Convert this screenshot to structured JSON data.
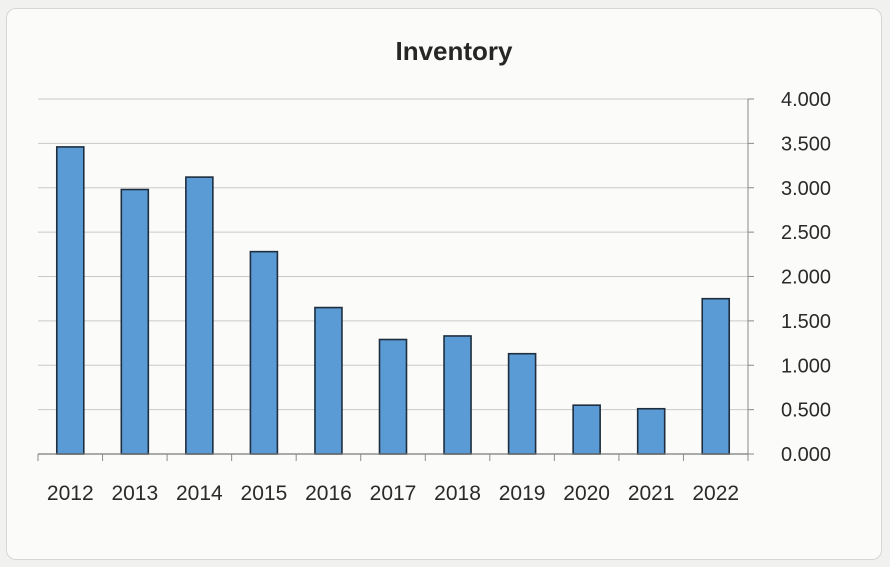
{
  "chart_data": {
    "type": "bar",
    "title": "Inventory",
    "xlabel": "",
    "ylabel": "",
    "categories": [
      "2012",
      "2013",
      "2014",
      "2015",
      "2016",
      "2017",
      "2018",
      "2019",
      "2020",
      "2021",
      "2022"
    ],
    "series": [
      {
        "values": [
          3.46,
          2.98,
          3.12,
          2.28,
          1.65,
          1.29,
          1.33,
          1.13,
          0.55,
          0.51,
          1.75
        ]
      }
    ],
    "ylim": [
      0,
      4
    ],
    "yticks": [
      "0.000",
      "0.500",
      "1.000",
      "1.500",
      "2.000",
      "2.500",
      "3.000",
      "3.500",
      "4.000"
    ],
    "y_axis_side": "right",
    "grid": true,
    "legend": "none",
    "bar_color": "#5b9bd5",
    "bar_border_color": "#1e2e3e"
  }
}
